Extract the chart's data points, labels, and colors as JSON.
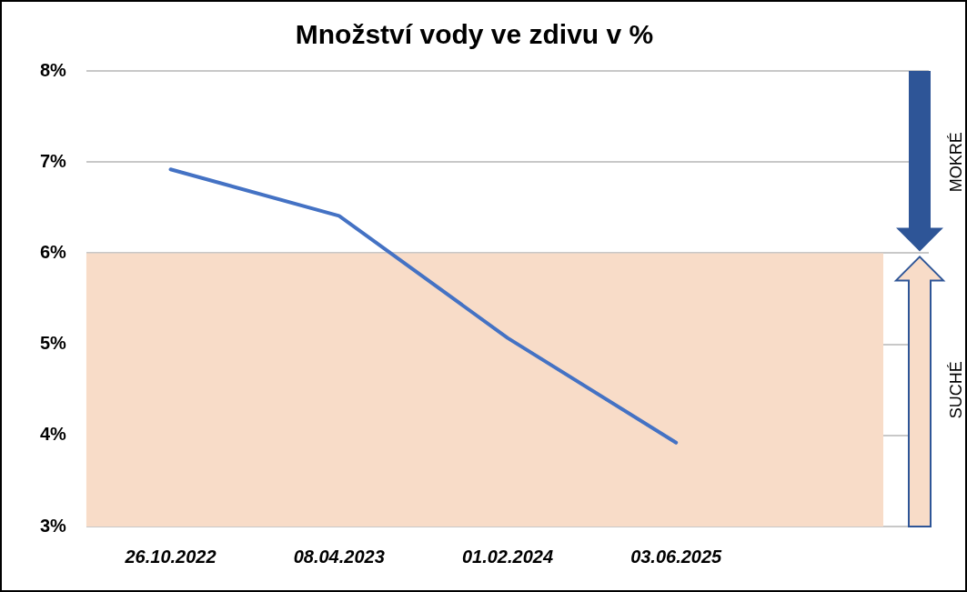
{
  "chart_data": {
    "type": "line",
    "title": "Množství vody ve zdivu v %",
    "categories": [
      "26.10.2022",
      "08.04.2023",
      "01.02.2024",
      "03.06.2025",
      null
    ],
    "series": [
      {
        "color": "#4472c4",
        "values": [
          6.92,
          6.41,
          5.07,
          3.92,
          null
        ]
      }
    ],
    "ylim": [
      3,
      8
    ],
    "yticks": [
      {
        "value": 3,
        "label": "3%"
      },
      {
        "value": 4,
        "label": "4%"
      },
      {
        "value": 5,
        "label": "5%"
      },
      {
        "value": 6,
        "label": "6%"
      },
      {
        "value": 7,
        "label": "7%"
      },
      {
        "value": 8,
        "label": "8%"
      }
    ],
    "grid": "y",
    "legend": false,
    "marker": "none",
    "line_style": "solid",
    "bands": [
      {
        "axis": "y",
        "from": 3,
        "to": 6,
        "color": "#f8dcc8"
      }
    ],
    "annotations": [
      "MOKRÉ",
      "SUCHÉ"
    ]
  }
}
